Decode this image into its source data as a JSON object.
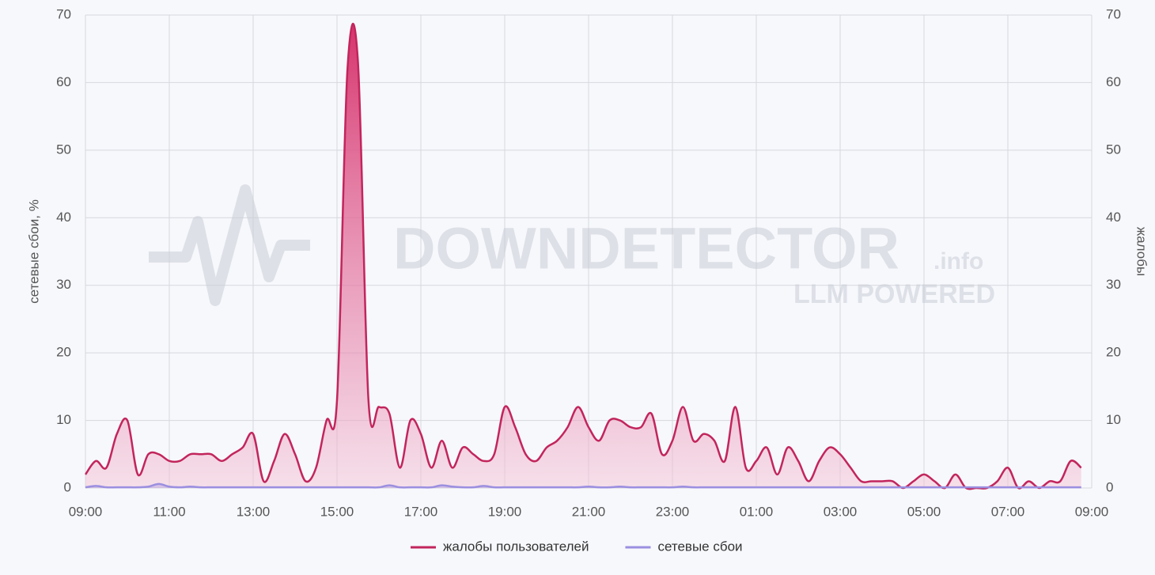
{
  "chart_data": {
    "type": "line",
    "categories": [
      "09:00",
      null,
      null,
      null,
      null,
      null,
      null,
      null,
      "11:00",
      null,
      null,
      null,
      null,
      null,
      null,
      null,
      "13:00",
      null,
      null,
      null,
      null,
      null,
      null,
      null,
      "15:00",
      null,
      null,
      null,
      null,
      null,
      null,
      null,
      "17:00",
      null,
      null,
      null,
      null,
      null,
      null,
      null,
      "19:00",
      null,
      null,
      null,
      null,
      null,
      null,
      null,
      "21:00",
      null,
      null,
      null,
      null,
      null,
      null,
      null,
      "23:00",
      null,
      null,
      null,
      null,
      null,
      null,
      null,
      "01:00",
      null,
      null,
      null,
      null,
      null,
      null,
      null,
      "03:00",
      null,
      null,
      null,
      null,
      null,
      null,
      null,
      "05:00",
      null,
      null,
      null,
      null,
      null,
      null,
      null,
      "07:00",
      null,
      null,
      null,
      null,
      null,
      null,
      null,
      "09:00"
    ],
    "series": [
      {
        "name": "жалобы пользователей",
        "color": "#c2255c",
        "axis": "y2",
        "values": [
          2,
          4,
          3,
          8,
          10,
          2,
          5,
          5,
          4,
          4,
          5,
          5,
          5,
          4,
          5,
          6,
          8,
          1,
          4,
          8,
          5,
          1,
          3,
          10,
          13,
          62,
          63,
          13,
          12,
          11,
          3,
          10,
          8,
          3,
          7,
          3,
          6,
          5,
          4,
          5,
          12,
          9,
          5,
          4,
          6,
          7,
          9,
          12,
          9,
          7,
          10,
          10,
          9,
          9,
          11,
          5,
          7,
          12,
          7,
          8,
          7,
          4,
          12,
          3,
          4,
          6,
          2,
          6,
          4,
          1,
          4,
          6,
          5,
          3,
          1,
          1,
          1,
          1,
          0,
          1,
          2,
          1,
          0,
          2,
          0,
          0,
          0,
          1,
          3,
          0,
          1,
          0,
          1,
          1,
          4,
          3,
          null
        ]
      },
      {
        "name": "сетевые сбои",
        "color": "#9b8fe0",
        "values": [
          0.1,
          0.3,
          0.1,
          0.1,
          0.1,
          0.1,
          0.2,
          0.6,
          0.2,
          0.1,
          0.2,
          0.1,
          0.1,
          0.1,
          0.1,
          0.1,
          0.1,
          0.1,
          0.1,
          0.1,
          0.1,
          0.1,
          0.1,
          0.1,
          0.1,
          0.1,
          0.1,
          0.1,
          0.1,
          0.4,
          0.1,
          0.1,
          0.1,
          0.1,
          0.4,
          0.2,
          0.1,
          0.1,
          0.3,
          0.1,
          0.1,
          0.1,
          0.1,
          0.1,
          0.1,
          0.1,
          0.1,
          0.1,
          0.2,
          0.1,
          0.1,
          0.2,
          0.1,
          0.1,
          0.1,
          0.1,
          0.1,
          0.2,
          0.1,
          0.1,
          0.1,
          0.1,
          0.1,
          0.1,
          0.1,
          0.1,
          0.1,
          0.1,
          0.1,
          0.1,
          0.1,
          0.1,
          0.1,
          0.1,
          0.1,
          0.1,
          0.1,
          0.1,
          0.1,
          0.1,
          0.1,
          0.1,
          0.1,
          0.1,
          0.1,
          0.1,
          0.1,
          0.1,
          0.1,
          0.1,
          0.1,
          0.1,
          0.1,
          0.1,
          0.1,
          0.1,
          null
        ]
      }
    ],
    "ylabel": "сетевые сбои, %",
    "y2label": "жалобы",
    "ylim": [
      0,
      70
    ],
    "yticks": [
      0,
      10,
      20,
      30,
      40,
      50,
      60,
      70
    ],
    "y2lim": [
      0,
      70
    ],
    "y2ticks": [
      0,
      10,
      20,
      30,
      40,
      50,
      60,
      70
    ],
    "grid": true,
    "legend": "bottom",
    "watermark": [
      "DOWNDETECTOR",
      ".info",
      "LLM POWERED"
    ]
  }
}
